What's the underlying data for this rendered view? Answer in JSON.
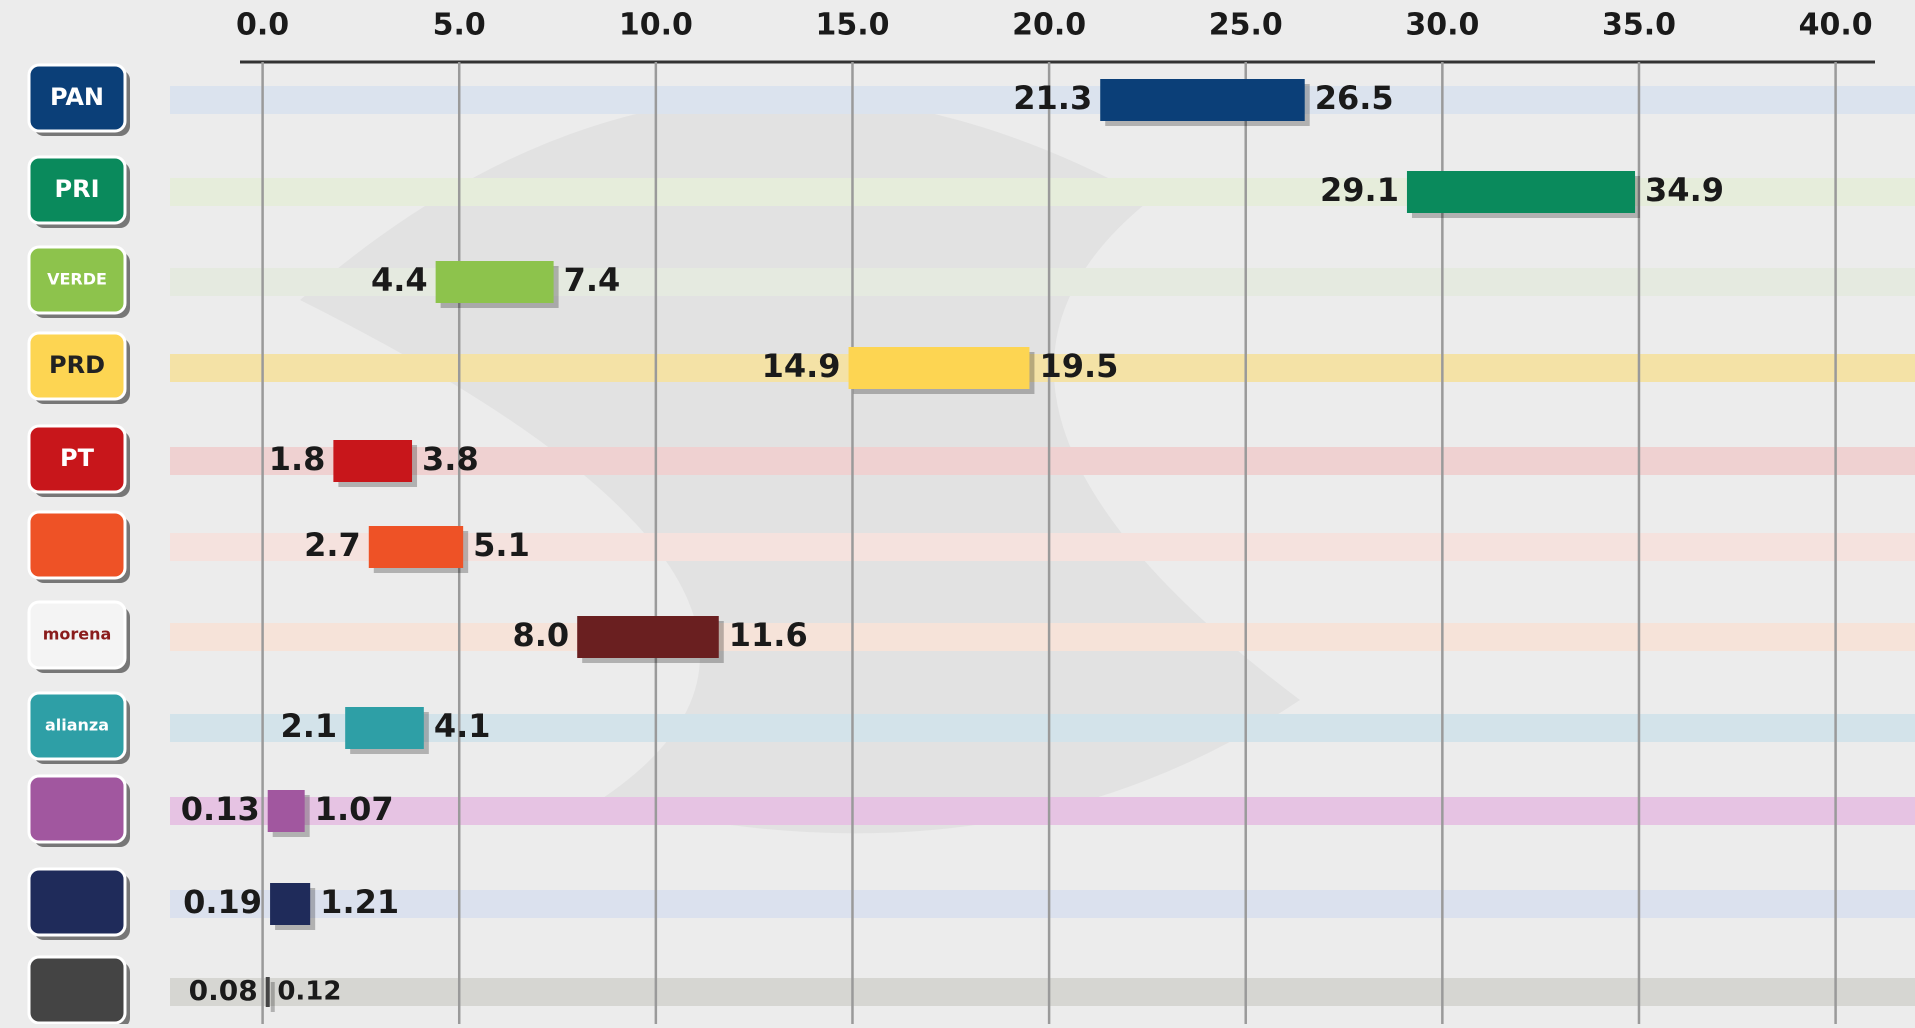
{
  "chart_data": {
    "type": "range_bar",
    "categories": [
      "PAN",
      "PRI",
      "VERDE",
      "PRD",
      "PT",
      null,
      "morena",
      "alianza",
      null,
      null,
      null
    ],
    "low": [
      21.3,
      29.1,
      4.4,
      14.9,
      1.8,
      2.7,
      8.0,
      2.1,
      0.13,
      0.19,
      0.08
    ],
    "low_labels": [
      "21.3",
      "29.1",
      "4.4",
      "14.9",
      "1.8",
      "2.7",
      "8.0",
      "2.1",
      "0.13",
      "0.19",
      "0.08"
    ],
    "high": [
      26.5,
      34.9,
      7.4,
      19.5,
      3.8,
      5.1,
      11.6,
      4.1,
      1.07,
      1.21,
      0.12
    ],
    "high_labels": [
      "26.5",
      "34.9",
      "7.4",
      "19.5",
      "3.8",
      "5.1",
      "11.6",
      "4.1",
      "1.07",
      "1.21",
      "0.12"
    ],
    "colors": [
      "#0b3f78",
      "#0a8a5c",
      "#8dc34c",
      "#fdd552",
      "#c8161b",
      "#ee5226",
      "#6a1f20",
      "#2e9fa6",
      "#a1579f",
      "#1f2b5a",
      "#444444"
    ],
    "track_colors": [
      "#dbe3ee",
      "#e6eddb",
      "#e5eae0",
      "#f4e2a6",
      "#efd1d1",
      "#f5e2de",
      "#f6e3d9",
      "#d3e3ea",
      "#e6c3e3",
      "#dbe1ee",
      "#d6d6d2"
    ],
    "xlim": [
      0,
      40
    ],
    "xticks": [
      {
        "value": 0,
        "label": "0.0"
      },
      {
        "value": 5,
        "label": "5.0"
      },
      {
        "value": 10,
        "label": "10.0"
      },
      {
        "value": 15,
        "label": "15.0"
      },
      {
        "value": 20,
        "label": "20.0"
      },
      {
        "value": 25,
        "label": "25.0"
      },
      {
        "value": 30,
        "label": "30.0"
      },
      {
        "value": 35,
        "label": "35.0"
      },
      {
        "value": 40,
        "label": "40.0"
      }
    ],
    "grid": true
  }
}
